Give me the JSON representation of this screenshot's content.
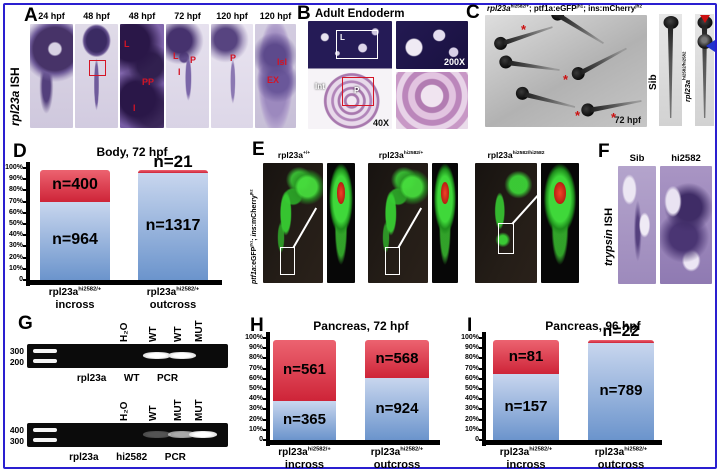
{
  "figure": {
    "colors": {
      "border": "#2a1fd0",
      "red_top": "#ec6370",
      "red": "#ce2438",
      "blue_top": "#c8d6ee",
      "blue": "#6b94cc",
      "annotation_red": "#d41425",
      "axis": "#000000"
    },
    "panel_a": {
      "label": "A",
      "side_label": {
        "italic": "rpl23a",
        "rest": " ISH"
      },
      "columns": [
        {
          "header": "24 hpf",
          "ann": []
        },
        {
          "header": "48 hpf",
          "ann": []
        },
        {
          "header": "48 hpf",
          "ann": [
            "L",
            "PP",
            "I"
          ]
        },
        {
          "header": "72 hpf",
          "ann": [
            "L",
            "P",
            "I"
          ]
        },
        {
          "header": "120 hpf",
          "ann": [
            "P"
          ]
        },
        {
          "header": "120 hpf",
          "ann": [
            "Isl",
            "EX"
          ]
        }
      ]
    },
    "panel_b": {
      "label": "B",
      "title": "Adult Endoderm",
      "ann": {
        "liver": "L",
        "intestine": "Int",
        "pancreas": "P",
        "mag_main": "40X",
        "mag_top": "200X"
      }
    },
    "panel_c": {
      "label": "C",
      "header": {
        "g": "rpl23a",
        "gs": "hi2582/+",
        "m": "; ptf1a:eGFP",
        "ms": "jh1",
        "e": "; ins:mCherry",
        "es": "jh2"
      },
      "time_label": "72 hpf",
      "sib_label": "Sib",
      "mut_label": {
        "g": "rpl23a",
        "gs": "hi2582/hi2582"
      }
    },
    "panel_e": {
      "label": "E",
      "side_label": {
        "p1": "ptf1a",
        "p2": ":eGFP",
        "s1": "jh1",
        "p3": "; ",
        "p4": "ins",
        "p5": ":mCherry",
        "s2": "jh2"
      },
      "columns": [
        {
          "gene": "rpl23a",
          "sup": "+/+"
        },
        {
          "gene": "rpl23a",
          "sup": "hi2582/+"
        },
        {
          "gene": "rpl23a",
          "sup": "hi2582/hi2582"
        }
      ]
    },
    "panel_f": {
      "label": "F",
      "col1": "Sib",
      "col2": "hi2582",
      "side_label": {
        "italic": "trypsin",
        "rest": " ISH"
      }
    },
    "panel_g": {
      "label": "G",
      "gels": [
        {
          "ladder": [
            "300",
            "200"
          ],
          "lanes": [
            "H₂O",
            "WT",
            "WT",
            "MUT"
          ],
          "bands": [
            0,
            1,
            1,
            0
          ],
          "caption": "rpl23a  WT  PCR"
        },
        {
          "ladder": [
            "400",
            "300"
          ],
          "lanes": [
            "H₂O",
            "WT",
            "MUT",
            "MUT"
          ],
          "bands": [
            0,
            0.3,
            0.65,
            1
          ],
          "caption": "rpl23a  hi2582  PCR"
        }
      ]
    },
    "chart_yticks": [
      "100%",
      "90%",
      "80%",
      "70%",
      "60%",
      "50%",
      "40%",
      "30%",
      "20%",
      "10%",
      "0"
    ],
    "charts": [
      {
        "label": "D",
        "title": "Body, 72 hpf",
        "bars": [
          {
            "red": 400,
            "blue": 964,
            "red_label": "n=400",
            "blue_label": "n=964",
            "x_gene": "rpl23a",
            "x_sup": "hi2582/+",
            "x_line2": "incross"
          },
          {
            "red": 21,
            "blue": 1317,
            "red_label": "n=21",
            "blue_label": "n=1317",
            "x_gene": "rpl23a",
            "x_sup": "hi2582/+",
            "x_line2": "outcross"
          }
        ]
      },
      {
        "label": "H",
        "title": "Pancreas, 72 hpf",
        "bars": [
          {
            "red": 561,
            "blue": 365,
            "red_label": "n=561",
            "blue_label": "n=365",
            "x_gene": "rpl23a",
            "x_sup": "hi2582/+",
            "x_line2": "incross"
          },
          {
            "red": 568,
            "blue": 924,
            "red_label": "n=568",
            "blue_label": "n=924",
            "x_gene": "rpl23a",
            "x_sup": "hi2582/+",
            "x_line2": "outcross"
          }
        ]
      },
      {
        "label": "I",
        "title": "Pancreas, 96 hpf",
        "bars": [
          {
            "red": 81,
            "blue": 157,
            "red_label": "n=81",
            "blue_label": "n=157",
            "x_gene": "rpl23a",
            "x_sup": "hi2582/+",
            "x_line2": "incross"
          },
          {
            "red": 22,
            "blue": 789,
            "red_label": "n=22",
            "blue_label": "n=789",
            "x_gene": "rpl23a",
            "x_sup": "hi2582/+",
            "x_line2": "outcross"
          }
        ]
      }
    ]
  },
  "chart_data": [
    {
      "type": "bar",
      "subtype": "stacked-percentage",
      "title": "Body, 72 hpf",
      "categories": [
        "rpl23a hi2582/+ incross",
        "rpl23a hi2582/+ outcross"
      ],
      "series": [
        {
          "name": "red (affected)",
          "values": [
            400,
            21
          ]
        },
        {
          "name": "blue (normal)",
          "values": [
            964,
            1317
          ]
        }
      ],
      "yticks": [
        "100%",
        "90%",
        "80%",
        "70%",
        "60%",
        "50%",
        "40%",
        "30%",
        "20%",
        "10%",
        "0"
      ],
      "ylim": [
        0,
        100
      ],
      "legend": false
    },
    {
      "type": "bar",
      "subtype": "stacked-percentage",
      "title": "Pancreas, 72 hpf",
      "categories": [
        "rpl23a hi2582/+ incross",
        "rpl23a hi2582/+ outcross"
      ],
      "series": [
        {
          "name": "red (affected)",
          "values": [
            561,
            568
          ]
        },
        {
          "name": "blue (normal)",
          "values": [
            365,
            924
          ]
        }
      ],
      "yticks": [
        "100%",
        "90%",
        "80%",
        "70%",
        "60%",
        "50%",
        "40%",
        "30%",
        "20%",
        "10%",
        "0"
      ],
      "ylim": [
        0,
        100
      ],
      "legend": false
    },
    {
      "type": "bar",
      "subtype": "stacked-percentage",
      "title": "Pancreas, 96 hpf",
      "categories": [
        "rpl23a hi2582/+ incross",
        "rpl23a hi2582/+ outcross"
      ],
      "series": [
        {
          "name": "red (affected)",
          "values": [
            81,
            22
          ]
        },
        {
          "name": "blue (normal)",
          "values": [
            157,
            789
          ]
        }
      ],
      "yticks": [
        "100%",
        "90%",
        "80%",
        "70%",
        "60%",
        "50%",
        "40%",
        "30%",
        "20%",
        "10%",
        "0"
      ],
      "ylim": [
        0,
        100
      ],
      "legend": false
    }
  ]
}
